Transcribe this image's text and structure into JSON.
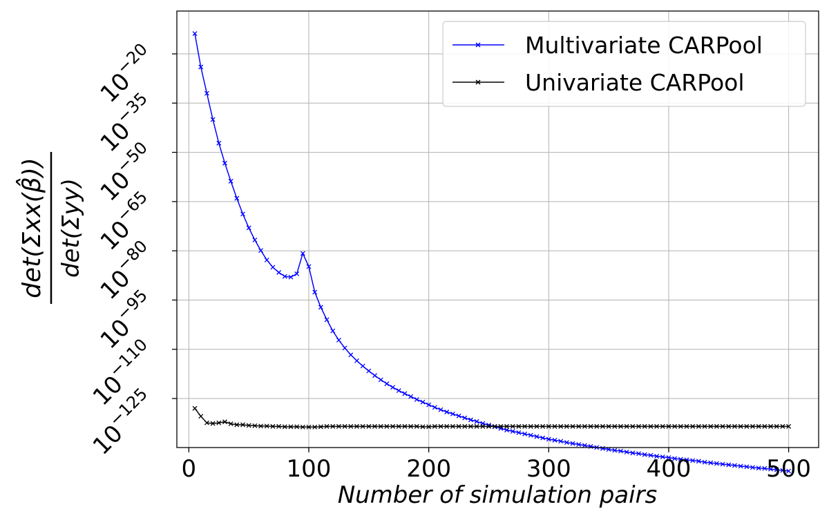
{
  "chart_data": {
    "type": "line",
    "xlabel": "Number of simulation pairs",
    "ylabel": {
      "numerator": "det(Σxx(β̂))",
      "denominator": "det(Σyy)"
    },
    "yscale": "log",
    "xlim": [
      -10,
      525
    ],
    "ylim_log10": [
      -139,
      -6
    ],
    "x_ticks": [
      0,
      100,
      200,
      300,
      400,
      500
    ],
    "x_tick_labels": [
      "0",
      "100",
      "200",
      "300",
      "400",
      "500"
    ],
    "y_ticks_log10": [
      -20,
      -35,
      -50,
      -65,
      -80,
      -95,
      -110,
      -125
    ],
    "y_tick_labels": [
      "10−20",
      "10−35",
      "10−50",
      "10−65",
      "10−80",
      "10−95",
      "10−110",
      "10−125"
    ],
    "grid": true,
    "legend_position": "top-right",
    "series": [
      {
        "name": "Multivariate CARPool",
        "color": "#0000ff",
        "marker": "x",
        "x": [
          5,
          10,
          15,
          20,
          25,
          30,
          35,
          40,
          45,
          50,
          55,
          60,
          65,
          70,
          75,
          80,
          85,
          90,
          95,
          100,
          105,
          110,
          115,
          120,
          125,
          130,
          135,
          140,
          145,
          150,
          155,
          160,
          165,
          170,
          175,
          180,
          185,
          190,
          195,
          200,
          205,
          210,
          215,
          220,
          225,
          230,
          235,
          240,
          245,
          250,
          255,
          260,
          265,
          270,
          275,
          280,
          285,
          290,
          295,
          300,
          305,
          310,
          315,
          320,
          325,
          330,
          335,
          340,
          345,
          350,
          355,
          360,
          365,
          370,
          375,
          380,
          385,
          390,
          395,
          400,
          405,
          410,
          415,
          420,
          425,
          430,
          435,
          440,
          445,
          450,
          455,
          460,
          465,
          470,
          475,
          480,
          485,
          490,
          495,
          500
        ],
        "log10_y": [
          -13.8,
          -24.0,
          -32.0,
          -40.0,
          -47.2,
          -53.3,
          -58.8,
          -64.0,
          -68.8,
          -73.0,
          -76.7,
          -79.9,
          -82.8,
          -85.0,
          -86.6,
          -87.8,
          -88.0,
          -87.0,
          -80.8,
          -84.8,
          -92.6,
          -97.2,
          -101.0,
          -104.4,
          -107.2,
          -109.6,
          -111.7,
          -113.5,
          -115.1,
          -116.6,
          -118.0,
          -119.3,
          -120.5,
          -121.6,
          -122.6,
          -123.5,
          -124.4,
          -125.3,
          -126.1,
          -126.9,
          -127.7,
          -128.4,
          -129.1,
          -129.7,
          -130.3,
          -130.9,
          -131.5,
          -132.0,
          -132.6,
          -133.1,
          -133.6,
          -134.1,
          -134.6,
          -135.0,
          -135.4,
          -135.8,
          -136.2,
          -136.6,
          -137.0,
          -137.4,
          -137.7,
          -138.0,
          -138.4,
          -138.7,
          -139.0,
          -139.3,
          -139.6,
          -139.9,
          -140.2,
          -140.5,
          -140.8,
          -141.0,
          -141.3,
          -141.6,
          -141.8,
          -142.1,
          -142.3,
          -142.6,
          -142.8,
          -143.0,
          -143.3,
          -143.5,
          -143.7,
          -143.9,
          -144.1,
          -144.4,
          -144.6,
          -144.8,
          -145.0,
          -145.2,
          -145.4,
          -145.6,
          -145.8,
          -146.0,
          -146.2,
          -146.3,
          -146.5,
          -146.7,
          -146.9,
          -147.1
        ]
      },
      {
        "name": "Univariate CARPool",
        "color": "#000000",
        "marker": "x",
        "x": [
          5,
          10,
          15,
          20,
          25,
          30,
          35,
          40,
          45,
          50,
          55,
          60,
          65,
          70,
          75,
          80,
          85,
          90,
          95,
          100,
          105,
          110,
          115,
          120,
          125,
          130,
          135,
          140,
          145,
          150,
          155,
          160,
          165,
          170,
          175,
          180,
          185,
          190,
          195,
          200,
          205,
          210,
          215,
          220,
          225,
          230,
          235,
          240,
          245,
          250,
          255,
          260,
          265,
          270,
          275,
          280,
          285,
          290,
          295,
          300,
          305,
          310,
          315,
          320,
          325,
          330,
          335,
          340,
          345,
          350,
          355,
          360,
          365,
          370,
          375,
          380,
          385,
          390,
          395,
          400,
          405,
          410,
          415,
          420,
          425,
          430,
          435,
          440,
          445,
          450,
          455,
          460,
          465,
          470,
          475,
          480,
          485,
          490,
          495,
          500
        ],
        "log10_y": [
          -128.0,
          -130.4,
          -132.4,
          -132.6,
          -132.4,
          -132.1,
          -132.7,
          -133.0,
          -133.0,
          -133.2,
          -133.3,
          -133.4,
          -133.4,
          -133.5,
          -133.5,
          -133.6,
          -133.6,
          -133.6,
          -133.7,
          -133.7,
          -133.7,
          -133.6,
          -133.5,
          -133.5,
          -133.5,
          -133.5,
          -133.5,
          -133.5,
          -133.5,
          -133.5,
          -133.5,
          -133.5,
          -133.5,
          -133.5,
          -133.5,
          -133.5,
          -133.5,
          -133.5,
          -133.6,
          -133.6,
          -133.5,
          -133.5,
          -133.5,
          -133.5,
          -133.5,
          -133.5,
          -133.5,
          -133.5,
          -133.5,
          -133.5,
          -133.5,
          -133.5,
          -133.5,
          -133.5,
          -133.5,
          -133.5,
          -133.5,
          -133.5,
          -133.5,
          -133.5,
          -133.5,
          -133.5,
          -133.5,
          -133.5,
          -133.5,
          -133.5,
          -133.5,
          -133.5,
          -133.5,
          -133.5,
          -133.5,
          -133.5,
          -133.5,
          -133.5,
          -133.5,
          -133.5,
          -133.5,
          -133.5,
          -133.5,
          -133.5,
          -133.5,
          -133.5,
          -133.5,
          -133.5,
          -133.5,
          -133.5,
          -133.5,
          -133.5,
          -133.5,
          -133.5,
          -133.5,
          -133.5,
          -133.5,
          -133.5,
          -133.5,
          -133.5,
          -133.5,
          -133.5,
          -133.5,
          -133.5
        ]
      }
    ]
  }
}
